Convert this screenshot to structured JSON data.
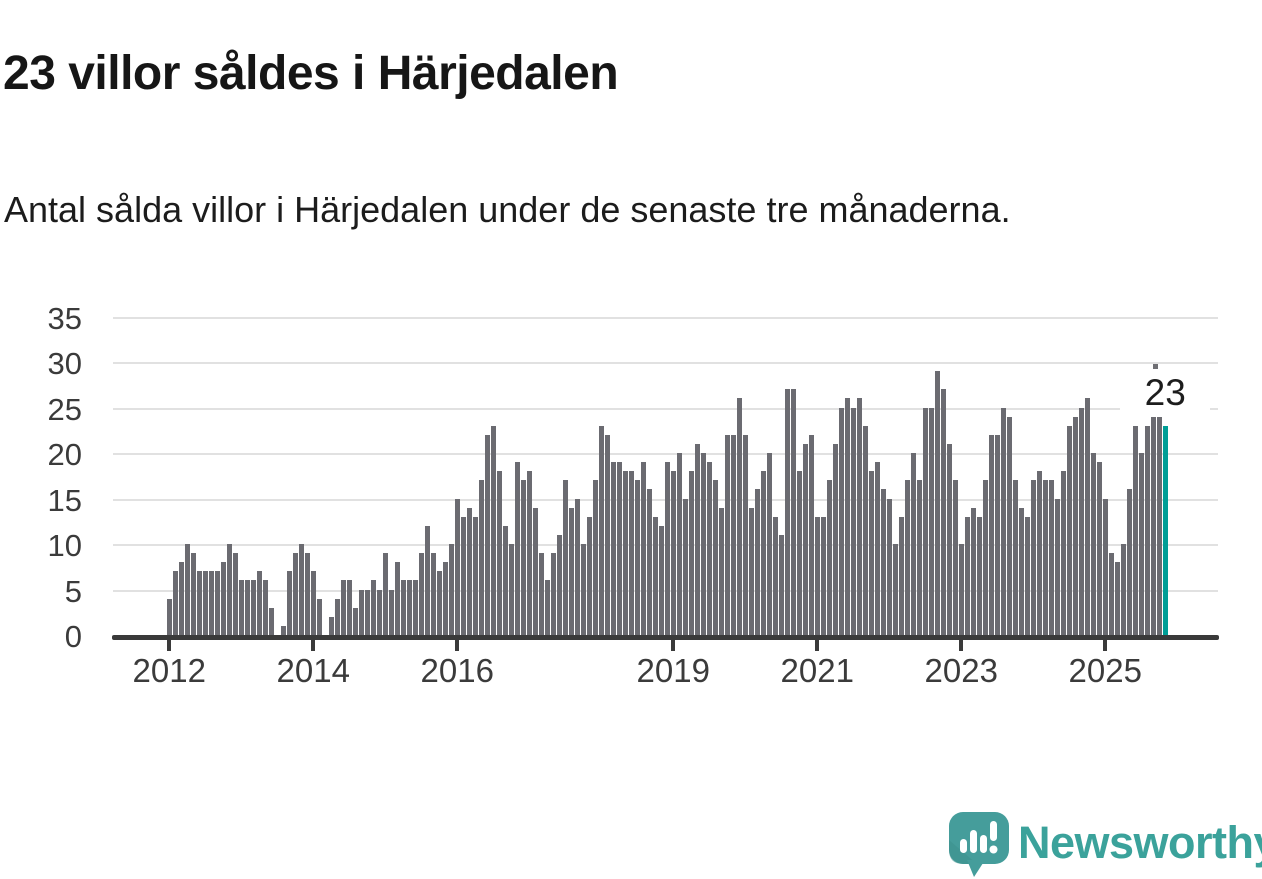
{
  "header": {
    "title": "23 villor såldes i Härjedalen",
    "subtitle": "Antal sålda villor i Härjedalen under de senaste tre månaderna."
  },
  "chart_data": {
    "type": "bar",
    "title": "23 villor såldes i Härjedalen",
    "description": "Antal sålda villor i Härjedalen under de senaste tre månaderna, månadsvis från 2012 till 2025.",
    "ylim": [
      0,
      35
    ],
    "y_ticks": [
      0,
      5,
      10,
      15,
      20,
      25,
      30,
      35
    ],
    "grid": true,
    "x_ticks": [
      {
        "label": "2012",
        "month_index": 0
      },
      {
        "label": "2014",
        "month_index": 24
      },
      {
        "label": "2016",
        "month_index": 48
      },
      {
        "label": "2019",
        "month_index": 84
      },
      {
        "label": "2021",
        "month_index": 108
      },
      {
        "label": "2023",
        "month_index": 132
      },
      {
        "label": "2025",
        "month_index": 156
      }
    ],
    "values": [
      4,
      7,
      8,
      10,
      9,
      7,
      7,
      7,
      7,
      8,
      10,
      9,
      6,
      6,
      6,
      7,
      6,
      3,
      0,
      1,
      7,
      9,
      10,
      9,
      7,
      4,
      0,
      2,
      4,
      6,
      6,
      3,
      5,
      5,
      6,
      5,
      9,
      5,
      8,
      6,
      6,
      6,
      9,
      12,
      9,
      7,
      8,
      10,
      15,
      13,
      14,
      13,
      17,
      22,
      23,
      18,
      12,
      10,
      19,
      17,
      18,
      14,
      9,
      6,
      9,
      11,
      17,
      14,
      15,
      10,
      13,
      17,
      23,
      22,
      19,
      19,
      18,
      18,
      17,
      19,
      16,
      13,
      12,
      19,
      18,
      20,
      15,
      18,
      21,
      20,
      19,
      17,
      14,
      22,
      22,
      26,
      22,
      14,
      16,
      18,
      20,
      13,
      11,
      27,
      27,
      18,
      21,
      22,
      13,
      13,
      17,
      21,
      25,
      26,
      25,
      26,
      23,
      18,
      19,
      16,
      15,
      10,
      13,
      17,
      20,
      17,
      25,
      25,
      29,
      27,
      21,
      17,
      10,
      13,
      14,
      13,
      17,
      22,
      22,
      25,
      24,
      17,
      14,
      13,
      17,
      18,
      17,
      17,
      15,
      18,
      23,
      24,
      25,
      26,
      20,
      19,
      15,
      9,
      8,
      10,
      16,
      23,
      20,
      23,
      24,
      24,
      23
    ],
    "highlight": {
      "index": 166,
      "value": 23,
      "label": "23",
      "color": "#009e96"
    },
    "colors": {
      "bar": "#6b6b71",
      "highlight": "#009e96",
      "grid": "#e1e1e1",
      "axis": "#3a3a3a",
      "tick_text": "#3b3b3b"
    }
  },
  "footer": {
    "brand": "Newsworthy",
    "brand_color": "#3ba29b",
    "logo_icon": "newsworthy-speech-bubble-bar-chart-icon"
  }
}
